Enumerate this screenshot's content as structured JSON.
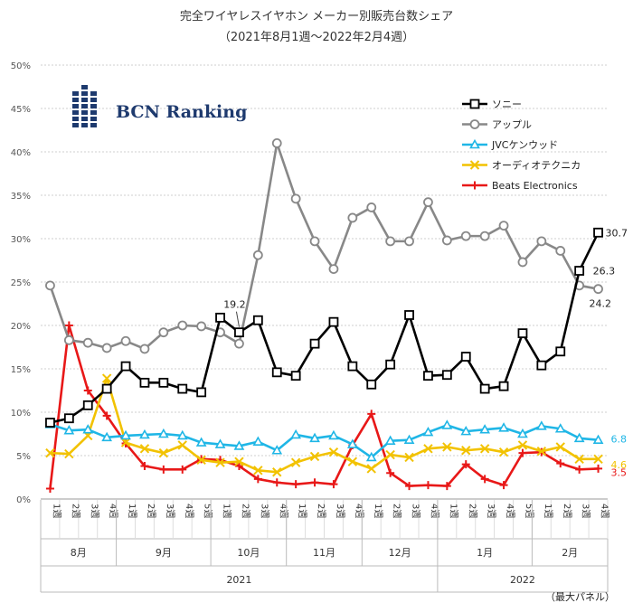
{
  "chart_data": {
    "type": "line",
    "title": "完全ワイヤレスイヤホン メーカー別販売台数シェア",
    "subtitle": "（2021年8月1週〜2022年2月4週）",
    "logo_text": "BCN Ranking",
    "note": "（最大パネル）",
    "y_ticks": [
      "0%",
      "5%",
      "10%",
      "15%",
      "20%",
      "25%",
      "30%",
      "35%",
      "40%",
      "45%",
      "50%"
    ],
    "ylim": [
      0,
      50
    ],
    "week_labels": [
      "1週",
      "2週",
      "3週",
      "4週",
      "1週",
      "2週",
      "3週",
      "4週",
      "5週",
      "1週",
      "2週",
      "3週",
      "4週",
      "1週",
      "2週",
      "3週",
      "4週",
      "1週",
      "2週",
      "3週",
      "4週",
      "1週",
      "2週",
      "3週",
      "4週",
      "5週",
      "1週",
      "2週",
      "3週",
      "4週"
    ],
    "months": [
      {
        "label": "8月",
        "start": 0,
        "end": 4
      },
      {
        "label": "9月",
        "start": 4,
        "end": 9
      },
      {
        "label": "10月",
        "start": 9,
        "end": 13
      },
      {
        "label": "11月",
        "start": 13,
        "end": 17
      },
      {
        "label": "12月",
        "start": 17,
        "end": 21
      },
      {
        "label": "1月",
        "start": 21,
        "end": 26
      },
      {
        "label": "2月",
        "start": 26,
        "end": 30
      }
    ],
    "years": [
      {
        "label": "2021",
        "start": 0,
        "end": 21
      },
      {
        "label": "2022",
        "start": 21,
        "end": 30
      }
    ],
    "series": [
      {
        "name": "ソニー",
        "color": "#000000",
        "marker": "square",
        "values": [
          8.8,
          9.3,
          10.8,
          12.7,
          15.3,
          13.4,
          13.4,
          12.7,
          12.3,
          20.9,
          19.2,
          20.6,
          14.6,
          14.2,
          17.9,
          20.4,
          15.3,
          13.2,
          15.5,
          21.2,
          14.2,
          14.3,
          16.4,
          12.7,
          13.0,
          19.1,
          15.4,
          17.0,
          26.3,
          30.7
        ]
      },
      {
        "name": "アップル",
        "color": "#888888",
        "marker": "circle",
        "values": [
          24.6,
          18.3,
          18.0,
          17.4,
          18.2,
          17.3,
          19.2,
          20.0,
          19.9,
          19.2,
          17.9,
          28.1,
          41.0,
          34.6,
          29.7,
          26.5,
          32.4,
          33.6,
          29.7,
          29.7,
          34.2,
          29.8,
          30.3,
          30.3,
          31.5,
          27.3,
          29.7,
          28.6,
          24.6,
          24.2
        ]
      },
      {
        "name": "JVCケンウッド",
        "color": "#1fb6e6",
        "marker": "triangle",
        "values": [
          8.6,
          7.9,
          8.0,
          7.1,
          7.3,
          7.4,
          7.5,
          7.3,
          6.5,
          6.3,
          6.1,
          6.6,
          5.6,
          7.4,
          7.0,
          7.3,
          6.3,
          4.8,
          6.7,
          6.8,
          7.7,
          8.5,
          7.8,
          8.0,
          8.2,
          7.5,
          8.4,
          8.1,
          7.0,
          6.8
        ]
      },
      {
        "name": "オーディオテクニカ",
        "color": "#f2c200",
        "marker": "x",
        "values": [
          5.3,
          5.2,
          7.3,
          13.9,
          6.5,
          5.8,
          5.3,
          6.2,
          4.5,
          4.2,
          4.3,
          3.3,
          3.1,
          4.2,
          4.9,
          5.4,
          4.3,
          3.5,
          5.1,
          4.8,
          5.8,
          6.0,
          5.6,
          5.8,
          5.4,
          6.2,
          5.5,
          6.0,
          4.6,
          4.6
        ]
      },
      {
        "name": "Beats Electronics",
        "color": "#e81818",
        "marker": "plus",
        "values": [
          1.2,
          20.0,
          12.5,
          9.6,
          6.4,
          3.8,
          3.4,
          3.4,
          4.6,
          4.5,
          3.8,
          2.3,
          1.9,
          1.7,
          1.9,
          1.7,
          6.2,
          9.8,
          3.0,
          1.5,
          1.6,
          1.5,
          4.0,
          2.3,
          1.6,
          5.3,
          5.4,
          4.1,
          3.4,
          3.5
        ]
      }
    ],
    "data_labels": [
      {
        "series": 0,
        "index": 10,
        "text": "19.2"
      },
      {
        "series": 0,
        "index": 29,
        "text": "30.7"
      },
      {
        "series": 0,
        "index": 28,
        "text": "26.3"
      },
      {
        "series": 1,
        "index": 29,
        "text": "24.2"
      },
      {
        "series": 2,
        "index": 29,
        "text": "6.8"
      },
      {
        "series": 3,
        "index": 29,
        "text": "4.6"
      },
      {
        "series": 4,
        "index": 29,
        "text": "3.5"
      }
    ]
  }
}
